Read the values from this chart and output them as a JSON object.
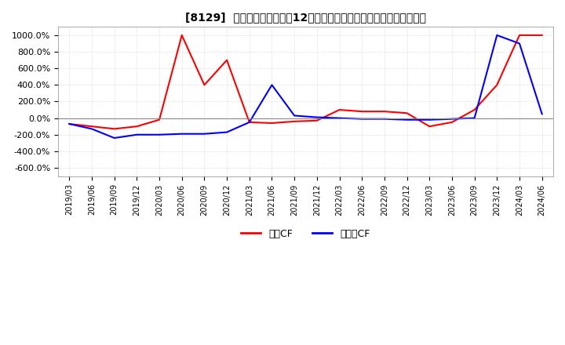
{
  "title": "[8129]  キャッシュフローの12か月移動合計の対前年同期増減率の推移",
  "ylim": [
    -700,
    1100
  ],
  "yticks": [
    -600,
    -400,
    -200,
    0,
    200,
    400,
    600,
    800,
    1000
  ],
  "background_color": "#ffffff",
  "grid_color": "#c8c8c8",
  "legend_labels": [
    "営業CF",
    "フリーCF"
  ],
  "line_colors": [
    "#ff0000",
    "#0000ff"
  ],
  "dates": [
    "2019/03",
    "2019/06",
    "2019/09",
    "2019/12",
    "2020/03",
    "2020/06",
    "2020/09",
    "2020/12",
    "2021/03",
    "2021/06",
    "2021/09",
    "2021/12",
    "2022/03",
    "2022/06",
    "2022/09",
    "2022/12",
    "2023/03",
    "2023/06",
    "2023/09",
    "2023/12",
    "2024/03",
    "2024/06"
  ],
  "operating_cf": [
    -70,
    -100,
    -130,
    -100,
    -20,
    1000,
    400,
    700,
    -50,
    -60,
    -40,
    -30,
    100,
    80,
    80,
    60,
    -100,
    -50,
    100,
    400,
    1000,
    1000
  ],
  "free_cf": [
    -70,
    -130,
    -240,
    -200,
    -200,
    -190,
    -190,
    -170,
    -50,
    400,
    30,
    10,
    0,
    -10,
    -10,
    -20,
    -20,
    -10,
    0,
    1000,
    900,
    50
  ]
}
